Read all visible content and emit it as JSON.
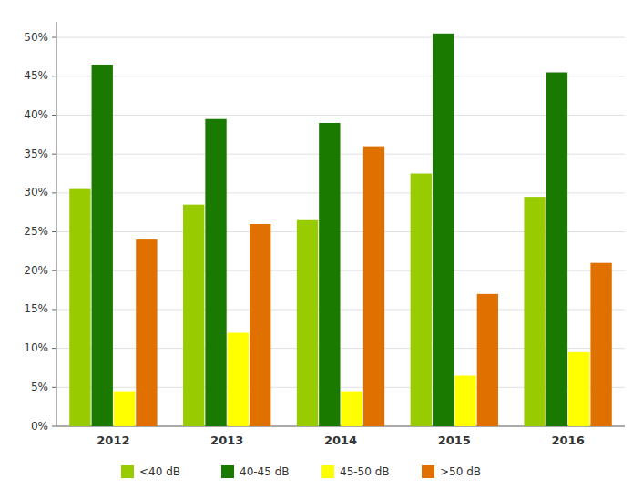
{
  "chart_data": {
    "type": "bar",
    "categories": [
      "2012",
      "2013",
      "2014",
      "2015",
      "2016"
    ],
    "series": [
      {
        "name": "<40 dB",
        "color": "#99cc00",
        "values": [
          30.5,
          28.5,
          26.5,
          32.5,
          29.5
        ]
      },
      {
        "name": "40-45 dB",
        "color": "#1a7a00",
        "values": [
          46.5,
          39.5,
          39.0,
          50.5,
          45.5
        ]
      },
      {
        "name": "45-50 dB",
        "color": "#ffff00",
        "values": [
          4.5,
          12.0,
          4.5,
          6.5,
          9.5
        ]
      },
      {
        "name": ">50 dB",
        "color": "#e07000",
        "values": [
          24.0,
          26.0,
          36.0,
          17.0,
          21.0
        ]
      }
    ],
    "ylim": [
      0,
      52
    ],
    "yticks": [
      {
        "value": 0,
        "label": "0%"
      },
      {
        "value": 5,
        "label": "5%"
      },
      {
        "value": 10,
        "label": "10%"
      },
      {
        "value": 15,
        "label": "15%"
      },
      {
        "value": 20,
        "label": "20%"
      },
      {
        "value": 25,
        "label": "25%"
      },
      {
        "value": 30,
        "label": "30%"
      },
      {
        "value": 35,
        "label": "35%"
      },
      {
        "value": 40,
        "label": "40%"
      },
      {
        "value": 45,
        "label": "45%"
      },
      {
        "value": 50,
        "label": "50%"
      }
    ],
    "grid": true,
    "legend": "bottom"
  }
}
